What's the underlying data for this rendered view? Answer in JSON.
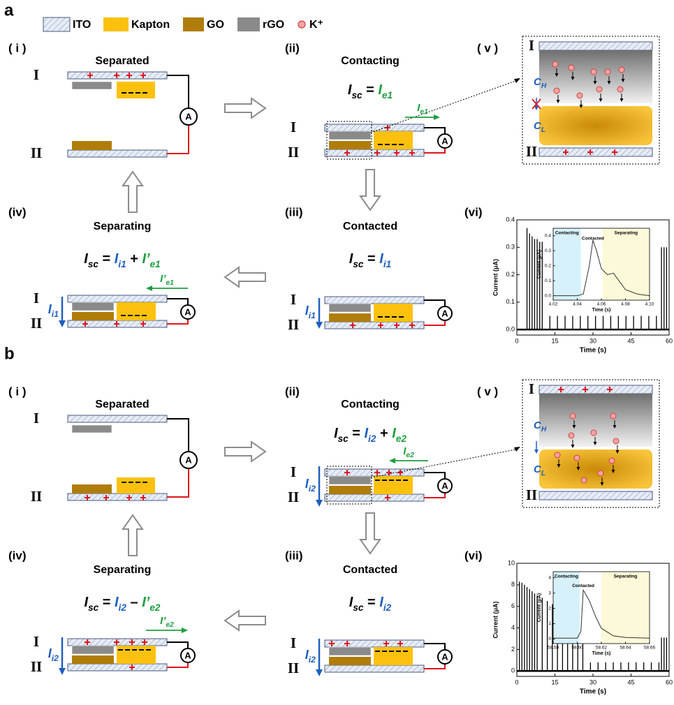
{
  "legend": [
    "ITO",
    "Kapton",
    "GO",
    "rGO",
    "K⁺"
  ],
  "electrode_labels": [
    "I",
    "II"
  ],
  "ammeter": "A",
  "panels": [
    {
      "label": "a",
      "i": {
        "tag": "( i )",
        "title": "Separated"
      },
      "ii": {
        "tag": "(ii)",
        "title": "Contacting",
        "equation": [
          {
            "text": "I",
            "sub": "sc",
            "color": "#000000"
          },
          {
            "text": " = ",
            "color": "#000000"
          },
          {
            "text": "I",
            "sub": "e1",
            "color": "#1e9e3e"
          }
        ],
        "current": [
          {
            "text": "I",
            "sub": "e1",
            "color": "#1e9e3e"
          }
        ]
      },
      "iii": {
        "tag": "(iii)",
        "title": "Contacted",
        "equation": [
          {
            "text": "I",
            "sub": "sc",
            "color": "#000000"
          },
          {
            "text": " = ",
            "color": "#000000"
          },
          {
            "text": "I",
            "sub": "i1",
            "color": "#1f5fbf"
          }
        ],
        "ion_current": [
          {
            "text": "I",
            "sub": "i1",
            "color": "#1f5fbf"
          }
        ]
      },
      "iv": {
        "tag": "(iv)",
        "title": "Separating",
        "equation": [
          {
            "text": "I",
            "sub": "sc",
            "color": "#000000"
          },
          {
            "text": " = ",
            "color": "#000000"
          },
          {
            "text": "I",
            "sub": "i1",
            "color": "#1f5fbf"
          },
          {
            "text": " + ",
            "color": "#000000"
          },
          {
            "text": "I’",
            "sub": "e1",
            "color": "#1e9e3e"
          }
        ],
        "current": [
          {
            "text": "I’",
            "sub": "e1",
            "color": "#1e9e3e"
          }
        ],
        "ion_current": [
          {
            "text": "I",
            "sub": "i1",
            "color": "#1f5fbf"
          }
        ]
      },
      "v": {
        "tag": "( v )",
        "labels": [
          [
            {
              "text": "C",
              "sub": "H",
              "color": "#1f5fbf"
            }
          ],
          [
            {
              "text": "C",
              "sub": "L",
              "color": "#1f5fbf"
            }
          ]
        ]
      },
      "vi": {
        "tag": "(vi)",
        "chart": {
          "type": "bar",
          "xlabel": "Time (s)",
          "ylabel": "Current (μA)",
          "xlim": [
            0,
            60
          ],
          "ylim": [
            -0.02,
            0.4
          ],
          "xticks": [
            0,
            15,
            30,
            45,
            60
          ],
          "yticks": [
            {
              "value": 0,
              "label": "0.0"
            },
            0.1,
            0.2,
            0.3,
            0.4
          ],
          "x": [
            4,
            5,
            6,
            7,
            8,
            9,
            10,
            13,
            16,
            19,
            22,
            25,
            28,
            31,
            34,
            37,
            40,
            43,
            46,
            49,
            52,
            55,
            57,
            58,
            59
          ],
          "values": [
            0.37,
            0.35,
            0.34,
            0.33,
            0.33,
            0.32,
            0.32,
            0.05,
            0.05,
            0.05,
            0.05,
            0.05,
            0.05,
            0.05,
            0.05,
            0.05,
            0.05,
            0.05,
            0.05,
            0.05,
            0.05,
            0.05,
            0.3,
            0.3,
            0.3
          ]
        },
        "inset": {
          "type": "line",
          "xlabel": "Time (s)",
          "ylabel": "Current (μA)",
          "xlim": [
            4.02,
            4.1
          ],
          "ylim": [
            -0.03,
            0.45
          ],
          "xticks": [
            4.02,
            4.04,
            4.06,
            4.08,
            {
              "value": 4.1,
              "label": "4.10"
            }
          ],
          "yticks": [
            {
              "value": 0,
              "label": "0.0"
            },
            0.1,
            0.2,
            0.3,
            0.4
          ],
          "regions": [
            {
              "name": "Contacting",
              "from": 4.02,
              "to": 4.043,
              "color": "#d6f1fa"
            },
            {
              "name": "Separating",
              "from": 4.061,
              "to": 4.1,
              "color": "#fcf9d9"
            }
          ],
          "annotation": "Contacted",
          "x": [
            4.02,
            4.03,
            4.04,
            4.045,
            4.05,
            4.053,
            4.056,
            4.06,
            4.065,
            4.07,
            4.08,
            4.09,
            4.1
          ],
          "values": [
            0.0,
            0.0,
            0.0,
            0.01,
            0.2,
            0.37,
            0.3,
            0.18,
            0.14,
            0.15,
            0.04,
            0.01,
            0.0
          ]
        }
      }
    },
    {
      "label": "b",
      "i": {
        "tag": "( i )",
        "title": "Separated"
      },
      "ii": {
        "tag": "(ii)",
        "title": "Contacting",
        "equation": [
          {
            "text": "I",
            "sub": "sc",
            "color": "#000000"
          },
          {
            "text": " = ",
            "color": "#000000"
          },
          {
            "text": "I",
            "sub": "i2",
            "color": "#1f5fbf"
          },
          {
            "text": " + ",
            "color": "#000000"
          },
          {
            "text": "I",
            "sub": "e2",
            "color": "#1e9e3e"
          }
        ],
        "current": [
          {
            "text": "I",
            "sub": "e2",
            "color": "#1e9e3e"
          }
        ],
        "ion_current": [
          {
            "text": "I",
            "sub": "i2",
            "color": "#1f5fbf"
          }
        ]
      },
      "iii": {
        "tag": "(iii)",
        "title": "Contacted",
        "equation": [
          {
            "text": "I",
            "sub": "sc",
            "color": "#000000"
          },
          {
            "text": " = ",
            "color": "#000000"
          },
          {
            "text": "I",
            "sub": "i2",
            "color": "#1f5fbf"
          }
        ],
        "ion_current": [
          {
            "text": "I",
            "sub": "i2",
            "color": "#1f5fbf"
          }
        ]
      },
      "iv": {
        "tag": "(iv)",
        "title": "Separating",
        "equation": [
          {
            "text": "I",
            "sub": "sc",
            "color": "#000000"
          },
          {
            "text": " = ",
            "color": "#000000"
          },
          {
            "text": "I",
            "sub": "i2",
            "color": "#1f5fbf"
          },
          {
            "text": " – ",
            "color": "#000000"
          },
          {
            "text": "I’",
            "sub": "e2",
            "color": "#1e9e3e"
          }
        ],
        "current": [
          {
            "text": "I’",
            "sub": "e2",
            "color": "#1e9e3e"
          }
        ],
        "ion_current": [
          {
            "text": "I",
            "sub": "i2",
            "color": "#1f5fbf"
          }
        ]
      },
      "v": {
        "tag": "( v )",
        "labels": [
          [
            {
              "text": "C",
              "sub": "H",
              "color": "#1f5fbf"
            }
          ],
          [
            {
              "text": "C",
              "sub": "L",
              "color": "#1f5fbf"
            }
          ]
        ]
      },
      "vi": {
        "tag": "(vi)",
        "chart": {
          "type": "bar",
          "xlabel": "Time (s)",
          "ylabel": "Current (μA)",
          "xlim": [
            0,
            60
          ],
          "ylim": [
            -0.5,
            10
          ],
          "xticks": [
            0,
            15,
            30,
            45,
            60
          ],
          "yticks": [
            0,
            2,
            4,
            6,
            8,
            10
          ],
          "x": [
            1,
            2,
            3,
            4,
            5,
            6,
            7,
            8,
            10,
            12,
            14,
            16,
            18,
            20,
            22,
            24,
            26,
            29,
            32,
            35,
            38,
            41,
            44,
            47,
            50,
            53,
            56,
            57,
            58,
            59
          ],
          "values": [
            8.3,
            8.2,
            8.0,
            7.8,
            7.6,
            7.4,
            7.2,
            7.0,
            6.8,
            6.5,
            6.2,
            5.9,
            5.6,
            5.3,
            5.0,
            4.8,
            4.7,
            0.8,
            0.8,
            0.8,
            0.8,
            0.8,
            0.8,
            0.8,
            0.8,
            0.8,
            0.8,
            3.1,
            3.1,
            3.1
          ]
        },
        "inset": {
          "type": "line",
          "xlabel": "Time (s)",
          "ylabel": "Current (μA)",
          "xlim": [
            58.58,
            58.66
          ],
          "ylim": [
            -0.3,
            4.4
          ],
          "xticks": [
            58.58,
            {
              "value": 58.6,
              "label": "58.60"
            },
            58.62,
            58.64,
            58.66
          ],
          "yticks": [
            0,
            1,
            2,
            3,
            4
          ],
          "regions": [
            {
              "name": "Contacting",
              "from": 58.58,
              "to": 58.602,
              "color": "#d6f1fa"
            },
            {
              "name": "Separating",
              "from": 58.62,
              "to": 58.66,
              "color": "#fcf9d9"
            }
          ],
          "annotation": "Contacted",
          "x": [
            58.58,
            58.59,
            58.6,
            58.603,
            58.605,
            58.61,
            58.615,
            58.62,
            58.63,
            58.64,
            58.66
          ],
          "values": [
            0.05,
            0.05,
            0.05,
            0.5,
            3.2,
            2.5,
            1.5,
            0.7,
            0.2,
            0.1,
            0.05
          ]
        }
      }
    }
  ]
}
